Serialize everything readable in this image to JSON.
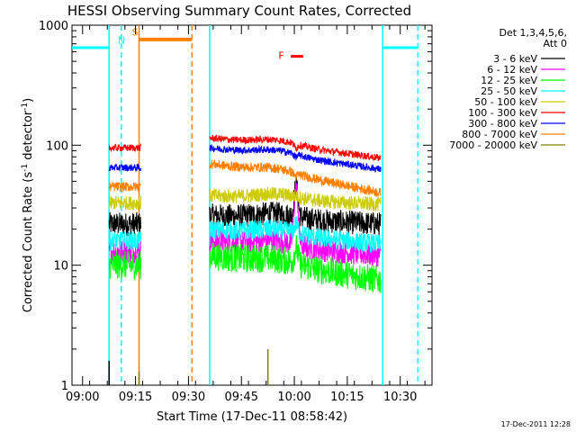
{
  "chart_data": {
    "type": "line",
    "title": "HESSI Observing Summary Count Rates, Corrected",
    "xlabel": "Start Time (17-Dec-11 08:58:42)",
    "ylabel": "Corrected Count Rate (s^-1 detector^-1)",
    "ylabel_main": "Corrected Count Rate (s",
    "ylabel_sup1": "-1",
    "ylabel_mid": " detector",
    "ylabel_sup2": "-1",
    "ylabel_end": ")",
    "yscale": "log",
    "ylim": [
      1,
      1000
    ],
    "xlim_minutes": [
      -3,
      99
    ],
    "x_ticks": [
      "09:00",
      "09:15",
      "09:30",
      "09:45",
      "10:00",
      "10:15",
      "10:30"
    ],
    "y_ticks": [
      "1",
      "10",
      "100",
      "1000"
    ],
    "legend_title": [
      "Det 1,3,4,5,6,",
      "Att 0"
    ],
    "legend_position": "right",
    "series": [
      {
        "name": "3 - 6 keV",
        "color": "#000000",
        "seg1": 22,
        "seg2": 26,
        "seg2_end": 22,
        "noise": 0.1,
        "spike": 45
      },
      {
        "name": "6 - 12 keV",
        "color": "#ff00ff",
        "seg1": 13,
        "seg2": 16,
        "seg2_end": 12,
        "noise": 0.1,
        "spike": 45
      },
      {
        "name": "12 - 25 keV",
        "color": "#00ff00",
        "seg1": 10,
        "seg2": 12,
        "seg2_end": 7.5,
        "noise": 0.12,
        "spike": 14
      },
      {
        "name": "25 - 50 keV",
        "color": "#00ffff",
        "seg1": 16,
        "seg2": 20,
        "seg2_end": 15,
        "noise": 0.08,
        "spike": 22
      },
      {
        "name": "50 - 100 keV",
        "color": "#cccc00",
        "seg1": 33,
        "seg2": 38,
        "seg2_end": 32,
        "noise": 0.06,
        "spike": 38
      },
      {
        "name": "100 - 300 keV",
        "color": "#ff0000",
        "seg1": 95,
        "seg2": 115,
        "seg2_end": 78,
        "noise": 0.03,
        "spike": 95
      },
      {
        "name": "300 - 800 keV",
        "color": "#0000ff",
        "seg1": 65,
        "seg2": 95,
        "seg2_end": 63,
        "noise": 0.03,
        "spike": 80
      },
      {
        "name": "800 - 7000 keV",
        "color": "#ff8000",
        "seg1": 45,
        "seg2": 70,
        "seg2_end": 40,
        "noise": 0.04,
        "spike": 55
      },
      {
        "name": "7000 - 20000 keV",
        "color": "#808000",
        "seg1": 0,
        "seg2": 0,
        "seg2_end": 0,
        "noise": 0,
        "spike": 0
      }
    ],
    "annotations": {
      "night_label": "N",
      "saa_label": "S",
      "flare_label": "F",
      "night_color": "#00ffff",
      "saa_color": "#ff8000",
      "flare_color": "#ff0000"
    }
  },
  "footer": {
    "timestamp": "17-Dec-2011 12:28"
  }
}
